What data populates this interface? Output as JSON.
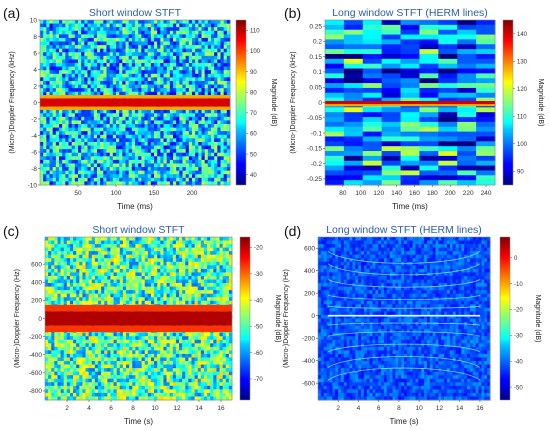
{
  "chart_data": [
    {
      "type": "heatmap",
      "panel_label": "(a)",
      "title": "Short window STFT",
      "xlabel": "Time (ms)",
      "ylabel": "(Micro-)Doppler Frequency (kHz)",
      "colorbar_label": "Magnitude (dB)",
      "xlim": [
        0,
        250
      ],
      "ylim": [
        -10,
        10
      ],
      "x_ticks": [
        "50",
        "100",
        "150",
        "200"
      ],
      "x_tick_values": [
        50,
        100,
        150,
        200
      ],
      "y_ticks": [
        "10",
        "8",
        "6",
        "4",
        "2",
        "0",
        "-2",
        "-4",
        "-6",
        "-8",
        "-10"
      ],
      "y_tick_values": [
        10,
        8,
        6,
        4,
        2,
        0,
        -2,
        -4,
        -6,
        -8,
        -10
      ],
      "colorbar_ticks": [
        "110",
        "100",
        "90",
        "80",
        "70",
        "60",
        "50",
        "40"
      ],
      "colorbar_tick_values": [
        110,
        100,
        90,
        80,
        70,
        60,
        50,
        40
      ],
      "clim": [
        35,
        115
      ],
      "hot_bands": [
        {
          "from": -0.5,
          "to": 0.5,
          "level": 108
        },
        {
          "from": -0.9,
          "to": -0.5,
          "level": 92
        },
        {
          "from": 0.5,
          "to": 0.9,
          "level": 92
        }
      ],
      "background_level": 62
    },
    {
      "type": "heatmap",
      "panel_label": "(b)",
      "title": "Long window STFT (HERM lines)",
      "xlabel": "Time (ms)",
      "ylabel": "(Micro-)Doppler Frequency (kHz)",
      "colorbar_label": "Magnitude (dB)",
      "xlim": [
        60,
        250
      ],
      "ylim": [
        -0.27,
        0.27
      ],
      "x_ticks": [
        "80",
        "100",
        "120",
        "140",
        "160",
        "180",
        "200",
        "220",
        "240"
      ],
      "x_tick_values": [
        80,
        100,
        120,
        140,
        160,
        180,
        200,
        220,
        240
      ],
      "y_ticks": [
        "0.25",
        "0.2",
        "0.15",
        "0.1",
        "0.05",
        "0",
        "-0.05",
        "-0.1",
        "-0.15",
        "-0.2",
        "-0.25"
      ],
      "y_tick_values": [
        0.25,
        0.2,
        0.15,
        0.1,
        0.05,
        0,
        -0.05,
        -0.1,
        -0.15,
        -0.2,
        -0.25
      ],
      "colorbar_ticks": [
        "140",
        "130",
        "120",
        "110",
        "100",
        "90"
      ],
      "colorbar_tick_values": [
        140,
        130,
        120,
        110,
        100,
        90
      ],
      "clim": [
        85,
        145
      ],
      "hot_bands": [
        {
          "from": -0.005,
          "to": 0.005,
          "level": 140
        },
        {
          "from": -0.012,
          "to": -0.005,
          "level": 128
        }
      ],
      "background_level": 100
    },
    {
      "type": "heatmap",
      "panel_label": "(c)",
      "title": "Short window STFT",
      "xlabel": "Time (s)",
      "ylabel": "(Micro-)Doppler Frequency (Hz)",
      "colorbar_label": "Magnitude (dB)",
      "xlim": [
        0,
        17
      ],
      "ylim": [
        -900,
        900
      ],
      "x_ticks": [
        "2",
        "4",
        "6",
        "8",
        "10",
        "12",
        "14",
        "16"
      ],
      "x_tick_values": [
        2,
        4,
        6,
        8,
        10,
        12,
        14,
        16
      ],
      "y_ticks": [
        "600",
        "400",
        "200",
        "0",
        "-200",
        "-400",
        "-600",
        "-800"
      ],
      "y_tick_values": [
        600,
        400,
        200,
        0,
        -200,
        -400,
        -600,
        -800
      ],
      "colorbar_ticks": [
        "-20",
        "-30",
        "-40",
        "-50",
        "-60",
        "-70"
      ],
      "colorbar_tick_values": [
        -20,
        -30,
        -40,
        -50,
        -60,
        -70
      ],
      "clim": [
        -78,
        -16
      ],
      "hot_bands": [
        {
          "from": -80,
          "to": 80,
          "level": -19
        },
        {
          "from": 80,
          "to": 150,
          "level": -27
        },
        {
          "from": -150,
          "to": -80,
          "level": -27
        }
      ],
      "background_level": -50
    },
    {
      "type": "heatmap",
      "panel_label": "(d)",
      "title": "Long window STFT (HERM lines)",
      "xlabel": "Time (s)",
      "ylabel": "(Micro-)Doppler Frequency (Hz)",
      "colorbar_label": "Magnitude (dB)",
      "xlim": [
        0,
        17
      ],
      "ylim": [
        -750,
        700
      ],
      "x_ticks": [
        "2",
        "4",
        "6",
        "8",
        "10",
        "12",
        "14",
        "16"
      ],
      "x_tick_values": [
        2,
        4,
        6,
        8,
        10,
        12,
        14,
        16
      ],
      "y_ticks": [
        "600",
        "400",
        "200",
        "0",
        "-200",
        "-400",
        "-600"
      ],
      "y_tick_values": [
        600,
        400,
        200,
        0,
        -200,
        -400,
        -600
      ],
      "colorbar_ticks": [
        "0",
        "-10",
        "-20",
        "-30",
        "-40",
        "-50"
      ],
      "colorbar_tick_values": [
        0,
        -10,
        -20,
        -30,
        -40,
        -50
      ],
      "clim": [
        -55,
        8
      ],
      "herm_lines_hz": [
        0,
        60,
        -60,
        130,
        -130,
        230,
        -230,
        330,
        -330,
        430,
        -430
      ],
      "background_level": -42
    }
  ]
}
